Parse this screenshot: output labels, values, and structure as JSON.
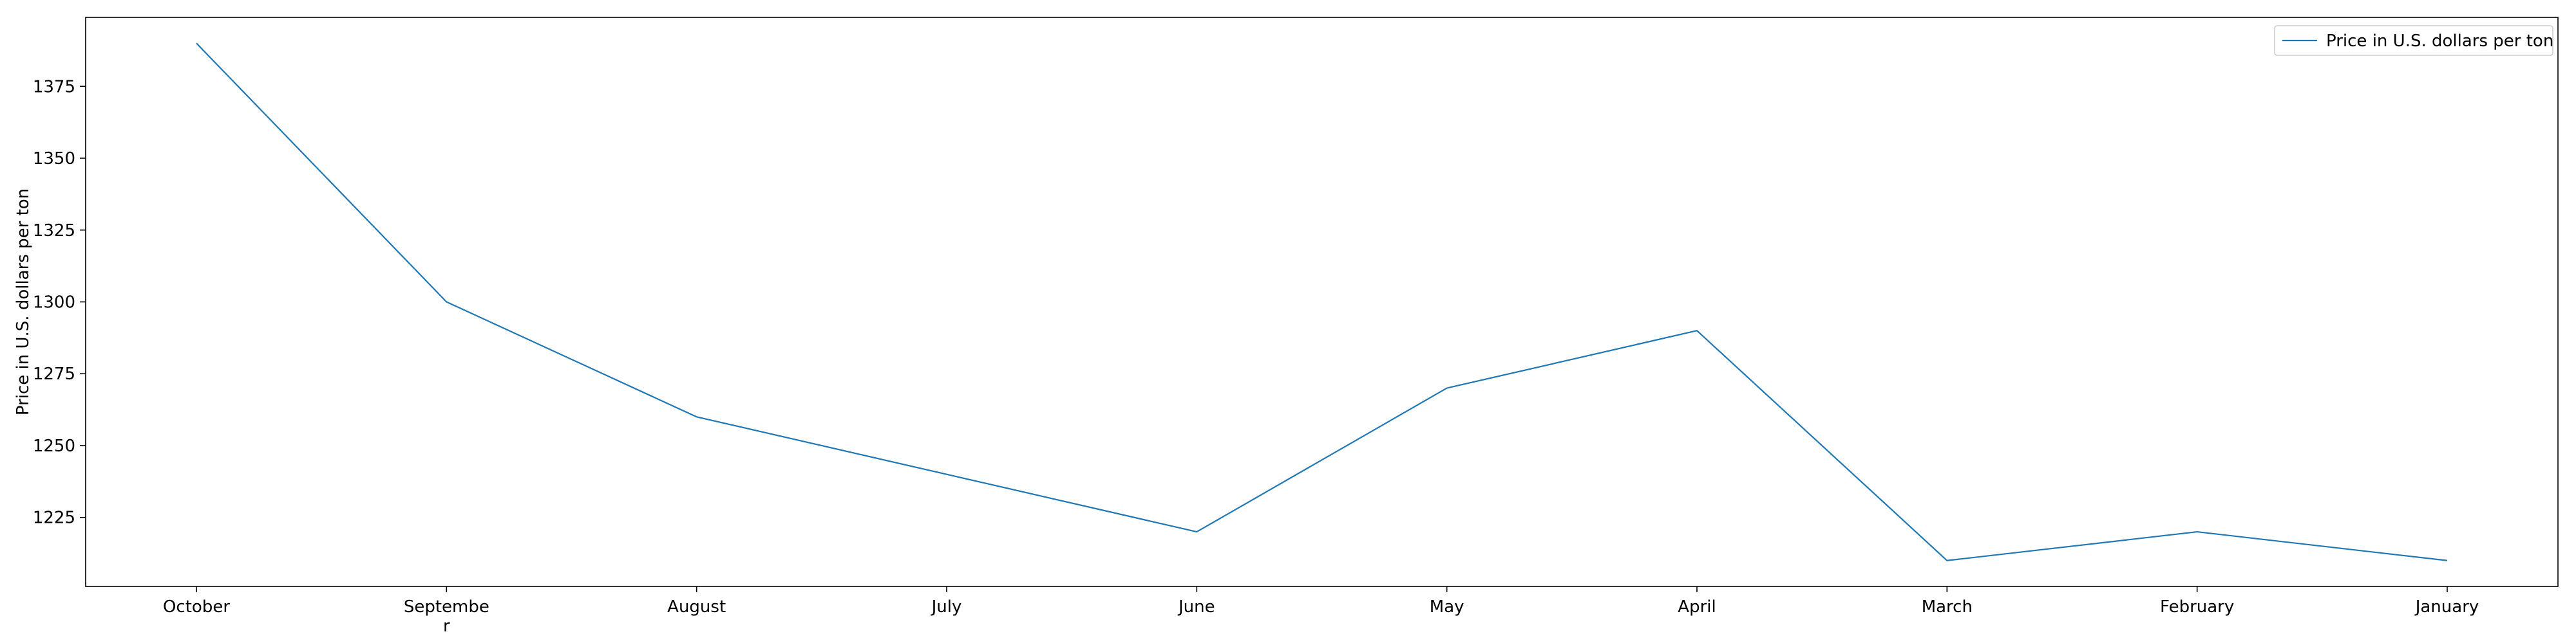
{
  "chart_data": {
    "type": "line",
    "title": "",
    "xlabel": "",
    "ylabel": "Price in U.S. dollars per ton",
    "categories": [
      "October",
      "Septembe\nr",
      "August",
      "July",
      "June",
      "May",
      "April",
      "March",
      "February",
      "January"
    ],
    "series": [
      {
        "name": "Price in U.S. dollars per ton",
        "color": "#1f77b4",
        "values": [
          1390,
          1300,
          1260,
          1240,
          1220,
          1270,
          1290,
          1210,
          1220,
          1210
        ]
      }
    ],
    "yticks": [
      1225,
      1250,
      1275,
      1300,
      1325,
      1350,
      1375
    ],
    "ylim": [
      1201,
      1399
    ],
    "grid": false,
    "legend_position": "top-right"
  }
}
